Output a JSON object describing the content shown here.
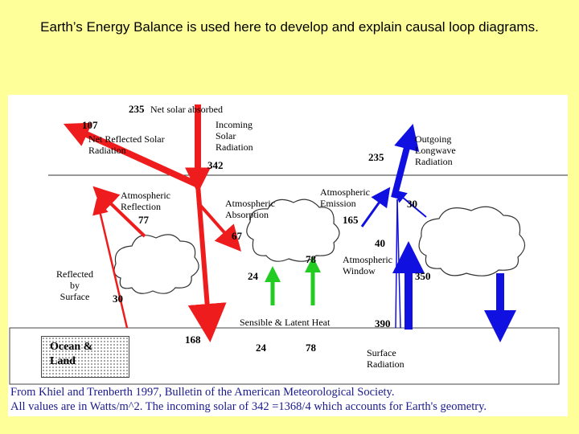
{
  "slide": {
    "title": "Earth’s Energy Balance is used here to develop and explain causal loop diagrams."
  },
  "diagram": {
    "net_solar_absorbed_value": "235",
    "net_solar_absorbed_label": "Net solar absorbed",
    "net_reflected_value": "107",
    "net_reflected_label": "Net Reflected Solar\nRadiation",
    "incoming_label": "Incoming\nSolar\nRadiation",
    "incoming_value": "342",
    "outgoing_value": "235",
    "outgoing_label": "Outgoing\nLongwave\nRadiation",
    "atm_reflection_label": "Atmospheric\nReflection",
    "atm_reflection_value": "77",
    "atm_absorption_label": "Atmospheric\nAbsorption",
    "atm_absorption_value": "67",
    "atm_emission_label": "Atmospheric\nEmission",
    "atm_emission_value": "165",
    "back_radiation_value": "30",
    "window_value": "40",
    "window_label": "Atmospheric\nWindow",
    "back_surface_value": "350",
    "reflected_surface_label": "Reflected\nby\nSurface",
    "reflected_surface_value": "30",
    "sensible_value": "24",
    "latent_value": "78",
    "sensible_latent_label": "Sensible & Latent Heat",
    "surface_emission_value": "390",
    "surface_absorbed_value": "168",
    "sensible_surface_value": "24",
    "latent_surface_value": "78",
    "surface_radiation_label": "Surface\nRadiation",
    "ocean_land_label": "Ocean &\nLand"
  },
  "caption": {
    "line1": "From Khiel and Trenberth 1997,  Bulletin of the American Meteorological Society.",
    "line2": "All values are in Watts/m^2.  The incoming solar of 342 =1368/4 which accounts for Earth's geometry."
  },
  "colors": {
    "solar": "#ee1c1c",
    "longwave": "#1010e0",
    "heat": "#22cc22"
  }
}
